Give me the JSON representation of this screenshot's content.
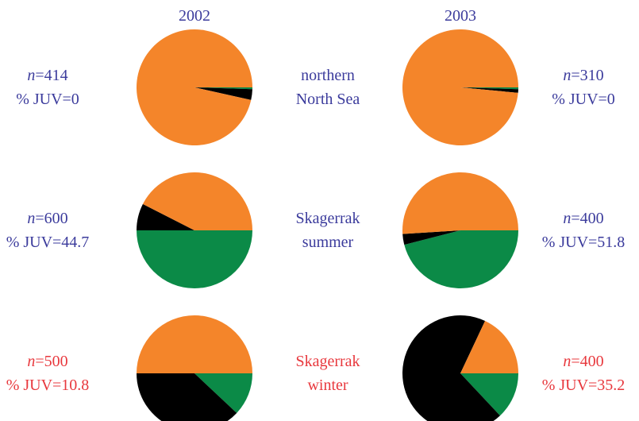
{
  "columns": [
    "2002",
    "2003"
  ],
  "rows": [
    {
      "region": [
        "northern",
        "North Sea"
      ],
      "color": "#3b3b9c"
    },
    {
      "region": [
        "Skagerrak",
        "summer"
      ],
      "color": "#3b3b9c"
    },
    {
      "region": [
        "Skagerrak",
        "winter"
      ],
      "color": "#e8383d"
    }
  ],
  "chart_data": [
    {
      "type": "pie",
      "values": [
        0.5,
        3,
        96.5
      ],
      "colors": [
        "#0b8a47",
        "#000000",
        "#f4852a"
      ],
      "annotations": [
        "n=414",
        "% JUV=0"
      ]
    },
    {
      "type": "pie",
      "values": [
        0.5,
        1,
        98.5
      ],
      "colors": [
        "#0b8a47",
        "#000000",
        "#f4852a"
      ],
      "annotations": [
        "n=310",
        "% JUV=0"
      ]
    },
    {
      "type": "pie",
      "values": [
        50,
        7.5,
        42.5
      ],
      "colors": [
        "#0b8a47",
        "#000000",
        "#f4852a"
      ],
      "annotations": [
        "n=600",
        "% JUV=44.7"
      ]
    },
    {
      "type": "pie",
      "values": [
        46,
        3,
        51
      ],
      "colors": [
        "#0b8a47",
        "#000000",
        "#f4852a"
      ],
      "annotations": [
        "n=400",
        "% JUV=51.8"
      ]
    },
    {
      "type": "pie",
      "values": [
        12,
        38,
        50
      ],
      "colors": [
        "#0b8a47",
        "#000000",
        "#f4852a"
      ],
      "annotations": [
        "n=500",
        "% JUV=10.8"
      ]
    },
    {
      "type": "pie",
      "values": [
        13,
        69,
        18
      ],
      "colors": [
        "#0b8a47",
        "#000000",
        "#f4852a"
      ],
      "annotations": [
        "n=400",
        "% JUV=35.2"
      ]
    }
  ]
}
